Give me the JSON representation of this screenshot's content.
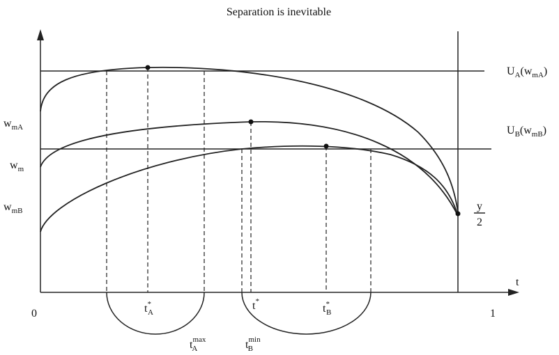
{
  "title": "Separation is inevitable",
  "axis": {
    "origin": "0",
    "end": "1",
    "t": "t"
  },
  "left_labels": [
    {
      "base": "w",
      "sub": "mA"
    },
    {
      "base": "w",
      "sub": "m"
    },
    {
      "base": "w",
      "sub": "mB"
    }
  ],
  "right_labels": [
    {
      "base": "U",
      "sub": "A",
      "open": "(w",
      "arg_sub": "mA",
      "close": ")"
    },
    {
      "base": "U",
      "sub": "B",
      "open": "(w",
      "arg_sub": "mB",
      "close": ")"
    },
    {
      "numerator": "y",
      "denominator": "2"
    }
  ],
  "time_labels": [
    {
      "base": "t",
      "sup": "*",
      "sub": "A"
    },
    {
      "base": "t",
      "sup": "*"
    },
    {
      "base": "t",
      "sup": "*",
      "sub": "B"
    },
    {
      "base": "t",
      "sup": "max",
      "sub": "A"
    },
    {
      "base": "t",
      "sup": "min",
      "sub": "B"
    }
  ]
}
